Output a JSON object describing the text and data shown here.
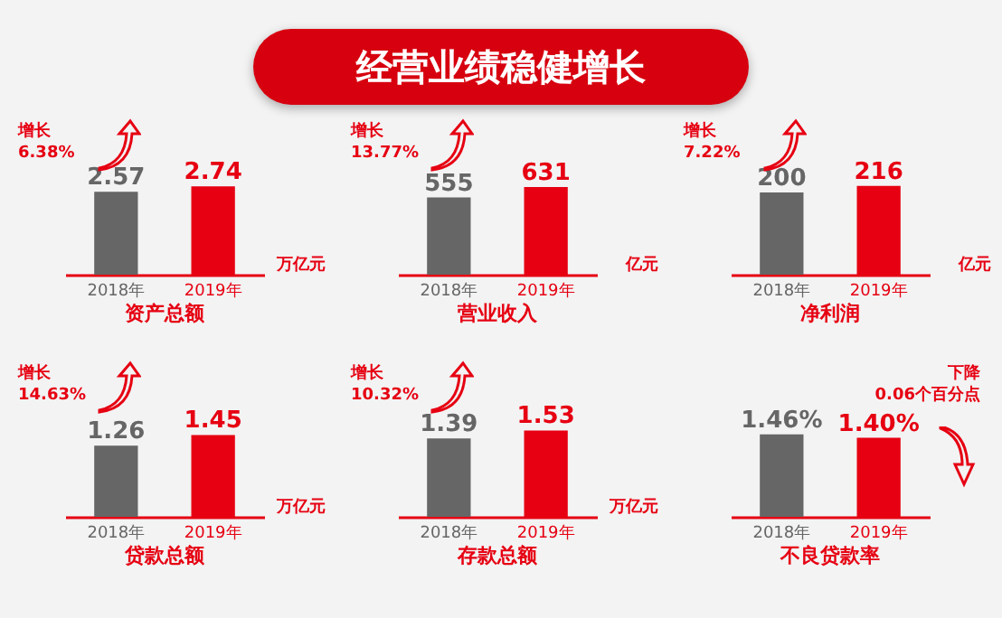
{
  "chart_data": [
    {
      "type": "other",
      "title": "经营业绩稳健增长"
    },
    {
      "type": "bar",
      "title": "资产总额",
      "categories": [
        "2018年",
        "2019年"
      ],
      "values": [
        2.57,
        2.74
      ],
      "colors": [
        "#666666",
        "#e60012"
      ],
      "data_labels": true,
      "tick_labels": "x",
      "annotations": [
        "增长",
        "6.38%",
        "万亿元"
      ]
    },
    {
      "type": "bar",
      "title": "营业收入",
      "categories": [
        "2018年",
        "2019年"
      ],
      "values": [
        555,
        631
      ],
      "colors": [
        "#666666",
        "#e60012"
      ],
      "data_labels": true,
      "tick_labels": "x",
      "annotations": [
        "增长",
        "13.77%",
        "亿元"
      ]
    },
    {
      "type": "bar",
      "title": "净利润",
      "categories": [
        "2018年",
        "2019年"
      ],
      "values": [
        200,
        216
      ],
      "colors": [
        "#666666",
        "#e60012"
      ],
      "data_labels": true,
      "tick_labels": "x",
      "annotations": [
        "增长",
        "7.22%",
        "亿元"
      ]
    },
    {
      "type": "bar",
      "title": "贷款总额",
      "categories": [
        "2018年",
        "2019年"
      ],
      "values": [
        1.26,
        1.45
      ],
      "colors": [
        "#666666",
        "#e60012"
      ],
      "data_labels": true,
      "tick_labels": "x",
      "annotations": [
        "增长",
        "14.63%",
        "万亿元"
      ]
    },
    {
      "type": "bar",
      "title": "存款总额",
      "categories": [
        "2018年",
        "2019年"
      ],
      "values": [
        1.39,
        1.53
      ],
      "colors": [
        "#666666",
        "#e60012"
      ],
      "data_labels": true,
      "tick_labels": "x",
      "annotations": [
        "增长",
        "10.32%",
        "万亿元"
      ]
    },
    {
      "type": "bar",
      "title": "不良贷款率",
      "categories": [
        "2018年",
        "2019年"
      ],
      "values": [
        1.46,
        1.4
      ],
      "value_labels": [
        "1.46%",
        "1.40%"
      ],
      "colors": [
        "#666666",
        "#e60012"
      ],
      "tick_labels": "x",
      "annotations": [
        "下降",
        "0.06个百分点"
      ]
    }
  ]
}
